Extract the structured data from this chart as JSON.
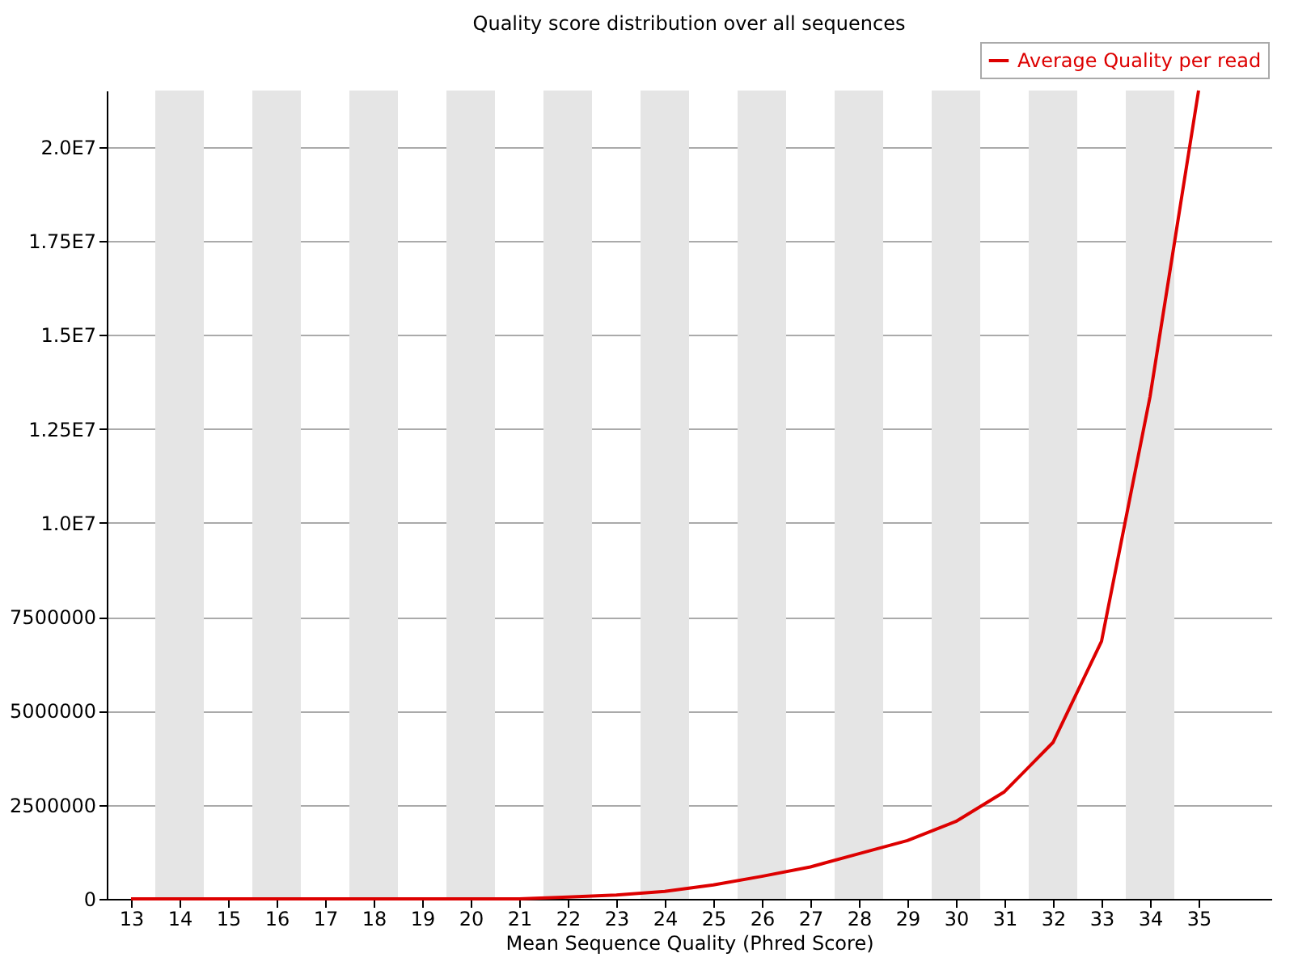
{
  "chart_data": {
    "type": "line",
    "title": "Quality score distribution over all sequences",
    "xlabel": "Mean Sequence Quality (Phred Score)",
    "x": [
      13,
      14,
      15,
      16,
      17,
      18,
      19,
      20,
      21,
      22,
      23,
      24,
      25,
      26,
      27,
      28,
      29,
      30,
      31,
      32,
      33,
      34,
      35
    ],
    "series": [
      {
        "name": "Average Quality per read",
        "color": "#dd0000",
        "values": [
          0,
          0,
          0,
          0,
          0,
          0,
          0,
          0,
          0,
          50000,
          100000,
          200000,
          370000,
          600000,
          850000,
          1200000,
          1550000,
          2060000,
          2850000,
          4160000,
          6850000,
          13360000,
          21500000
        ]
      }
    ],
    "xlim": [
      12.5,
      36.5
    ],
    "xticks": [
      13,
      14,
      15,
      16,
      17,
      18,
      19,
      20,
      21,
      22,
      23,
      24,
      25,
      26,
      27,
      28,
      29,
      30,
      31,
      32,
      33,
      34,
      35
    ],
    "ylim": [
      0,
      21500000
    ],
    "yticks": [
      0,
      2500000,
      5000000,
      7500000,
      {
        "value": 10000000,
        "label": "1.0E7"
      },
      {
        "value": 12500000,
        "label": "1.25E7"
      },
      {
        "value": 15000000,
        "label": "1.5E7"
      },
      {
        "value": 17500000,
        "label": "1.75E7"
      },
      {
        "value": 20000000,
        "label": "2.0E7"
      }
    ],
    "bands": [
      {
        "axis": "x",
        "from": 13.5,
        "to": 14.5,
        "color": "#e5e5e5"
      },
      {
        "axis": "x",
        "from": 15.5,
        "to": 16.5,
        "color": "#e5e5e5"
      },
      {
        "axis": "x",
        "from": 17.5,
        "to": 18.5,
        "color": "#e5e5e5"
      },
      {
        "axis": "x",
        "from": 19.5,
        "to": 20.5,
        "color": "#e5e5e5"
      },
      {
        "axis": "x",
        "from": 21.5,
        "to": 22.5,
        "color": "#e5e5e5"
      },
      {
        "axis": "x",
        "from": 23.5,
        "to": 24.5,
        "color": "#e5e5e5"
      },
      {
        "axis": "x",
        "from": 25.5,
        "to": 26.5,
        "color": "#e5e5e5"
      },
      {
        "axis": "x",
        "from": 27.5,
        "to": 28.5,
        "color": "#e5e5e5"
      },
      {
        "axis": "x",
        "from": 29.5,
        "to": 30.5,
        "color": "#e5e5e5"
      },
      {
        "axis": "x",
        "from": 31.5,
        "to": 32.5,
        "color": "#e5e5e5"
      },
      {
        "axis": "x",
        "from": 33.5,
        "to": 34.5,
        "color": "#e5e5e5"
      }
    ],
    "grid": "y",
    "legend": "top right",
    "marker": "none",
    "line_style": "solid"
  }
}
